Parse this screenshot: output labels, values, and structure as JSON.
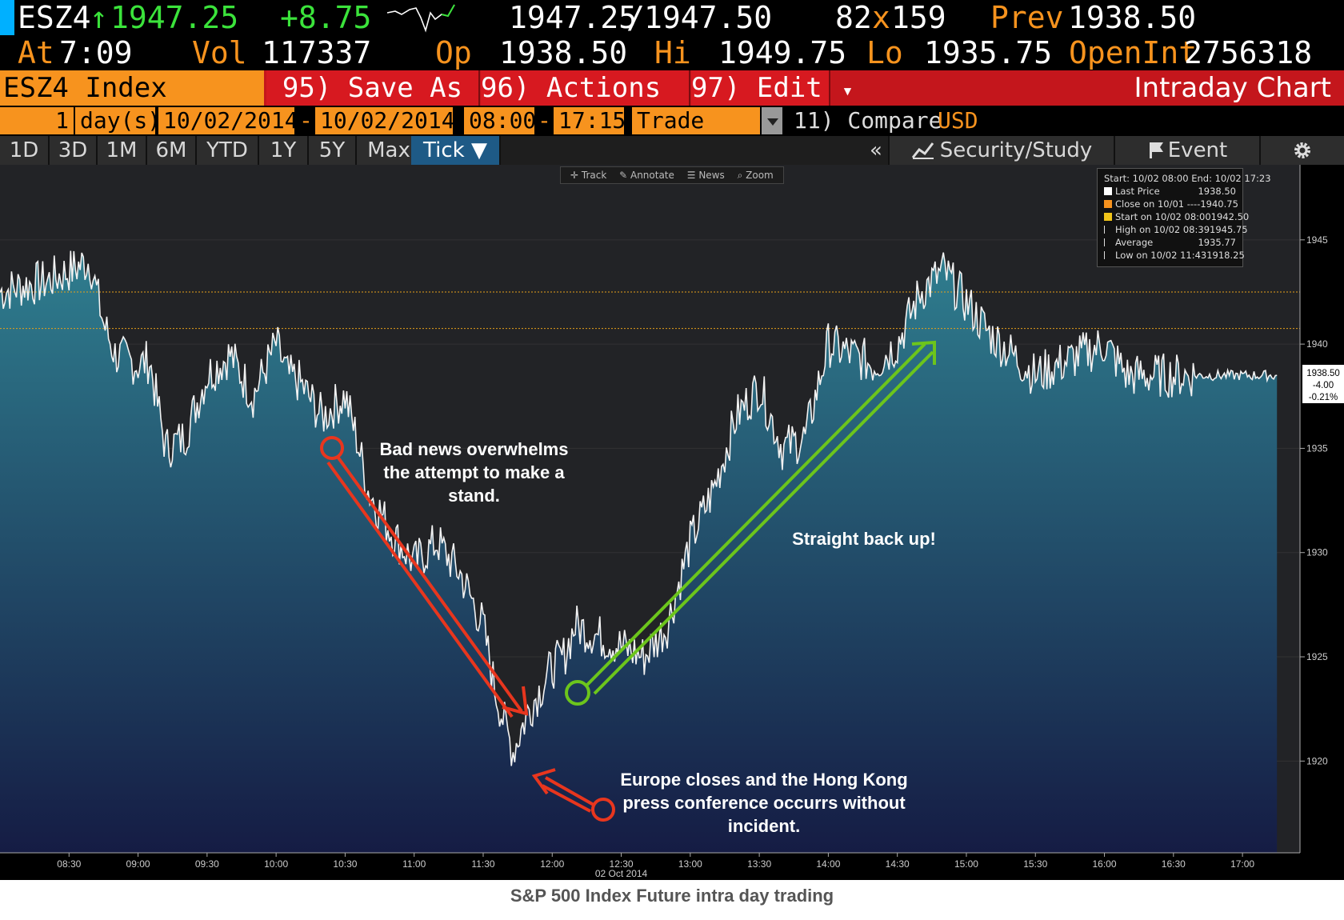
{
  "quote": {
    "ticker": "ESZ4",
    "arrow": "↑",
    "last": "1947.25",
    "change": "+8.75",
    "bid": "1947.25",
    "sep": "/",
    "ask": "1947.50",
    "size_bid": "82",
    "size_x": "x",
    "size_ask": "159",
    "prev_label": "Prev",
    "prev": "1938.50",
    "at_label": "At",
    "time": "7:09",
    "vol_label": "Vol",
    "vol": "117337",
    "op_label": "Op",
    "op": "1938.50",
    "hi_label": "Hi",
    "hi": "1949.75",
    "lo_label": "Lo",
    "lo": "1935.75",
    "oi_label": "OpenInt",
    "oi": "2756318"
  },
  "toolbar": {
    "security": "ESZ4 Index",
    "save_as": "95) Save As",
    "actions": "96) Actions",
    "edit": "97) Edit",
    "dropdown_glyph": "▾",
    "title": "Intraday Chart"
  },
  "range": {
    "days": "1",
    "days_unit": "day(s)",
    "start_date": "10/02/2014",
    "dash": "-",
    "end_date": "10/02/2014",
    "start_time": "08:00",
    "end_time": "17:15",
    "mode": "Trade",
    "compare": "11) Compare",
    "currency": "USD"
  },
  "periods": [
    "1D",
    "3D",
    "1M",
    "6M",
    "YTD",
    "1Y",
    "5Y",
    "Max"
  ],
  "tick_label": "Tick ▼",
  "right_tools": {
    "collapse": "«",
    "study": "Security/Study",
    "event": "Event"
  },
  "mini_tools": [
    "Track",
    "Annotate",
    "News",
    "Zoom"
  ],
  "legend": {
    "header": "Start: 10/02 08:00 End: 10/02 17:23",
    "rows": [
      {
        "label": "Last Price",
        "value": "1938.50",
        "color": "#ffffff"
      },
      {
        "label": "Close on 10/01 ----",
        "value": "1940.75",
        "color": "#f7931e"
      },
      {
        "label": "Start on 10/02 08:00",
        "value": "1942.50",
        "color": "#f0c419"
      },
      {
        "label": "High on 10/02 08:39",
        "value": "1945.75",
        "color": ""
      },
      {
        "label": "Average",
        "value": "1935.77",
        "color": ""
      },
      {
        "label": "Low on 10/02 11:43",
        "value": "1918.25",
        "color": ""
      }
    ]
  },
  "price_box": {
    "price": "1938.50",
    "chg": "-4.00",
    "pct": "-0.21%"
  },
  "annotations": {
    "bad_news": "Bad news overwhelms the attempt to make a stand.",
    "back_up": "Straight back up!",
    "europe": "Europe closes and the Hong Kong press conference occurrs without incident."
  },
  "caption": "S&P 500 Index Future intra day trading",
  "chart_data": {
    "type": "line",
    "x_tick_labels": [
      "08:30",
      "09:00",
      "09:30",
      "10:00",
      "10:30",
      "11:00",
      "11:30",
      "12:00",
      "12:30",
      "13:00",
      "13:30",
      "14:00",
      "14:30",
      "15:00",
      "15:30",
      "16:00",
      "16:30",
      "17:00"
    ],
    "date_label": "02 Oct 2014",
    "y_ticks": [
      1920,
      1925,
      1930,
      1935,
      1940,
      1945
    ],
    "ylim": [
      1915.6,
      1948.6
    ],
    "x": [
      "08:00",
      "08:10",
      "08:20",
      "08:30",
      "08:39",
      "08:45",
      "08:50",
      "09:00",
      "09:05",
      "09:12",
      "09:20",
      "09:30",
      "09:40",
      "09:50",
      "10:00",
      "10:05",
      "10:10",
      "10:20",
      "10:30",
      "10:35",
      "10:40",
      "10:50",
      "11:00",
      "11:10",
      "11:20",
      "11:30",
      "11:35",
      "11:40",
      "11:43",
      "11:50",
      "12:00",
      "12:05",
      "12:10",
      "12:20",
      "12:30",
      "12:40",
      "12:50",
      "13:00",
      "13:10",
      "13:20",
      "13:30",
      "13:40",
      "13:50",
      "14:00",
      "14:10",
      "14:20",
      "14:30",
      "14:40",
      "14:50",
      "15:00",
      "15:10",
      "15:20",
      "15:30",
      "15:40",
      "15:50",
      "16:00",
      "16:10",
      "16:20",
      "16:30",
      "16:40",
      "16:50",
      "17:00",
      "17:10",
      "17:15"
    ],
    "values": [
      1942.5,
      1942.8,
      1943.0,
      1943.5,
      1944.0,
      1941.0,
      1939.5,
      1939.0,
      1939.2,
      1935.0,
      1935.5,
      1938.5,
      1939.5,
      1937.5,
      1940.0,
      1938.5,
      1938.2,
      1936.5,
      1937.5,
      1935.5,
      1933.0,
      1931.0,
      1929.5,
      1930.5,
      1929.0,
      1926.5,
      1923.5,
      1921.5,
      1920.5,
      1922.5,
      1924.5,
      1925.0,
      1926.5,
      1926.0,
      1925.5,
      1925.0,
      1926.5,
      1930.5,
      1933.0,
      1936.5,
      1938.0,
      1935.0,
      1935.5,
      1940.0,
      1939.5,
      1939.0,
      1940.0,
      1942.5,
      1943.5,
      1942.0,
      1940.5,
      1939.5,
      1938.5,
      1939.0,
      1939.5,
      1940.0,
      1938.5,
      1938.5,
      1938.5,
      1938.5,
      1938.5,
      1938.5,
      1938.5,
      1938.5
    ],
    "reference_lines": [
      1942.5,
      1940.75
    ],
    "fill_colors": [
      "#2f7e8f",
      "#151c44"
    ]
  }
}
